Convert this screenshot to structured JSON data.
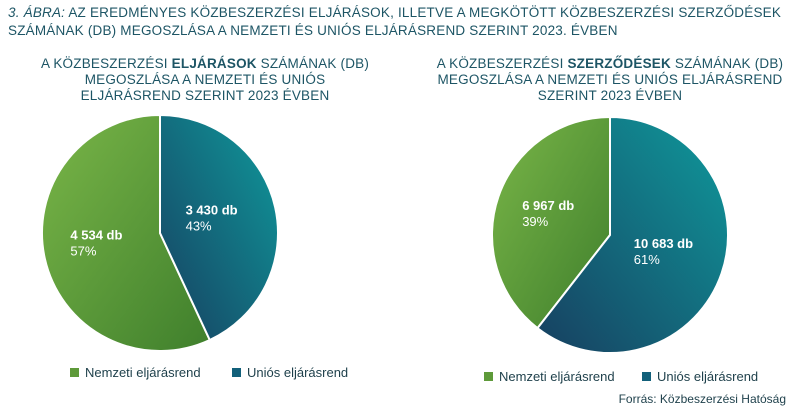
{
  "figure": {
    "label": "3. ÁBRA:",
    "title": "AZ EREDMÉNYES KÖZBESZERZÉSI ELJÁRÁSOK, ILLETVE A MEGKÖTÖTT KÖZBESZERZÉSI SZERZŐDÉSEK SZÁMÁNAK (DB) MEGOSZLÁSA A NEMZETI ÉS UNIÓS ELJÁRÁSREND SZERINT 2023. ÉVBEN"
  },
  "source": "Forrás: Közbeszerzési Hatóság",
  "colors": {
    "nemzeti": "#5e9a3a",
    "unios": "#12607a"
  },
  "chart_data": [
    {
      "type": "pie",
      "title_pre": "A KÖZBESZERZÉSI ",
      "title_bold": "ELJÁRÁSOK",
      "title_post": " SZÁMÁNAK (DB) MEGOSZLÁSA A NEMZETI ÉS UNIÓS ELJÁRÁSREND SZERINT 2023 ÉVBEN",
      "legend_position": "bottom",
      "slices": [
        {
          "name": "Nemzeti eljárásrend",
          "value": 4534,
          "value_label": "4 534 db",
          "percent_label": "57%"
        },
        {
          "name": "Uniós eljárásrend",
          "value": 3430,
          "value_label": "3 430 db",
          "percent_label": "43%"
        }
      ]
    },
    {
      "type": "pie",
      "title_pre": "A KÖZBESZERZÉSI ",
      "title_bold": "SZERZŐDÉSEK",
      "title_post": " SZÁMÁNAK (DB) MEGOSZLÁSA A NEMZETI ÉS UNIÓS ELJÁRÁSREND SZERINT 2023 ÉVBEN",
      "legend_position": "bottom",
      "slices": [
        {
          "name": "Nemzeti eljárásrend",
          "value": 6967,
          "value_label": "6 967 db",
          "percent_label": "39%"
        },
        {
          "name": "Uniós eljárásrend",
          "value": 10683,
          "value_label": "10 683 db",
          "percent_label": "61%"
        }
      ]
    }
  ]
}
